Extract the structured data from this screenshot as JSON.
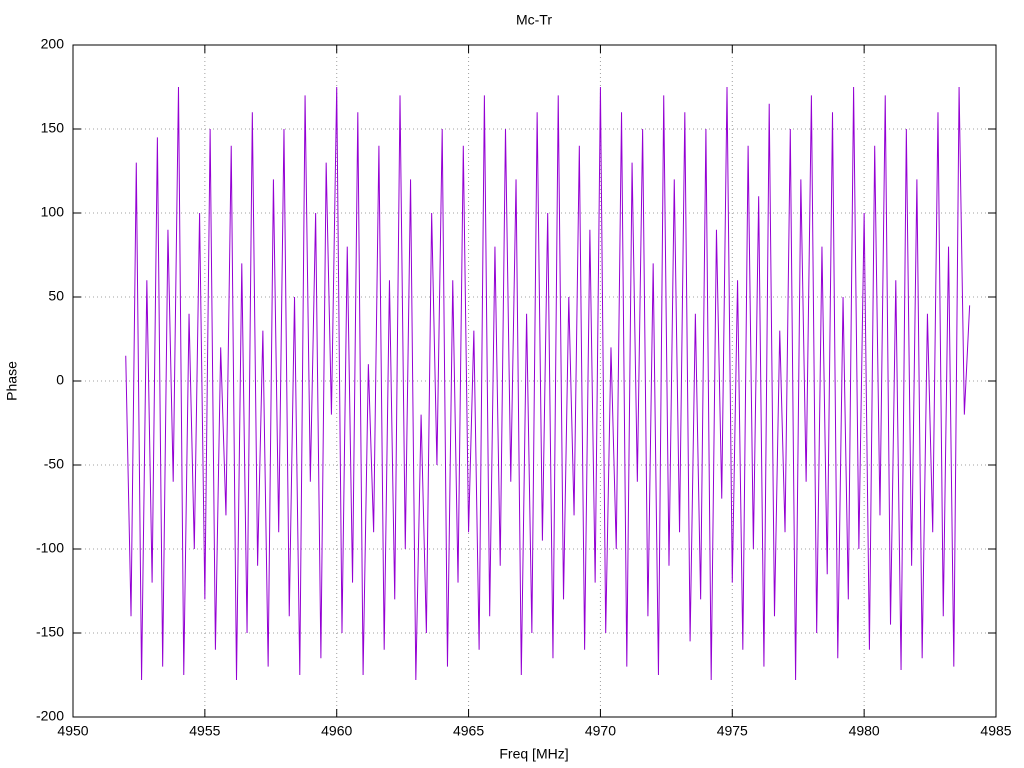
{
  "chart_data": {
    "type": "line",
    "title": "Mc-Tr",
    "x_label": "Freq [MHz]",
    "y_label": "Phase",
    "color": "#9400d3",
    "grid": true,
    "xlim": [
      4950,
      4985
    ],
    "xticks": [
      4950,
      4955,
      4960,
      4965,
      4970,
      4975,
      4980,
      4985
    ],
    "ylim": [
      -200,
      200
    ],
    "yticks": [
      -200,
      -150,
      -100,
      -50,
      0,
      50,
      100,
      150,
      200
    ],
    "x": [
      4952,
      4952.2,
      4952.4,
      4952.6,
      4952.8,
      4953,
      4953.2,
      4953.4,
      4953.6,
      4953.8,
      4954,
      4954.2,
      4954.4,
      4954.6,
      4954.8,
      4955,
      4955.2,
      4955.4,
      4955.6,
      4955.8,
      4956,
      4956.2,
      4956.4,
      4956.6,
      4956.8,
      4957,
      4957.2,
      4957.4,
      4957.6,
      4957.8,
      4958,
      4958.2,
      4958.4,
      4958.6,
      4958.8,
      4959,
      4959.2,
      4959.4,
      4959.6,
      4959.8,
      4960,
      4960.2,
      4960.4,
      4960.6,
      4960.8,
      4961,
      4961.2,
      4961.4,
      4961.6,
      4961.8,
      4962,
      4962.2,
      4962.4,
      4962.6,
      4962.8,
      4963,
      4963.2,
      4963.4,
      4963.6,
      4963.8,
      4964,
      4964.2,
      4964.4,
      4964.6,
      4964.8,
      4965,
      4965.2,
      4965.4,
      4965.6,
      4965.8,
      4966,
      4966.2,
      4966.4,
      4966.6,
      4966.8,
      4967,
      4967.2,
      4967.4,
      4967.6,
      4967.8,
      4968,
      4968.2,
      4968.4,
      4968.6,
      4968.8,
      4969,
      4969.2,
      4969.4,
      4969.6,
      4969.8,
      4970,
      4970.2,
      4970.4,
      4970.6,
      4970.8,
      4971,
      4971.2,
      4971.4,
      4971.6,
      4971.8,
      4972,
      4972.2,
      4972.4,
      4972.6,
      4972.8,
      4973,
      4973.2,
      4973.4,
      4973.6,
      4973.8,
      4974,
      4974.2,
      4974.4,
      4974.6,
      4974.8,
      4975,
      4975.2,
      4975.4,
      4975.6,
      4975.8,
      4976,
      4976.2,
      4976.4,
      4976.6,
      4976.8,
      4977,
      4977.2,
      4977.4,
      4977.6,
      4977.8,
      4978,
      4978.2,
      4978.4,
      4978.6,
      4978.8,
      4979,
      4979.2,
      4979.4,
      4979.6,
      4979.8,
      4980,
      4980.2,
      4980.4,
      4980.6,
      4980.8,
      4981,
      4981.2,
      4981.4,
      4981.6,
      4981.8,
      4982,
      4982.2,
      4982.4,
      4982.6,
      4982.8,
      4983,
      4983.2,
      4983.4,
      4983.6,
      4983.8,
      4984
    ],
    "values": [
      15,
      -140,
      130,
      -178,
      60,
      -120,
      145,
      -170,
      90,
      -60,
      175,
      -175,
      40,
      -100,
      100,
      -130,
      150,
      -160,
      20,
      -80,
      140,
      -178,
      70,
      -150,
      160,
      -110,
      30,
      -170,
      120,
      -90,
      150,
      -140,
      50,
      -175,
      170,
      -60,
      100,
      -165,
      130,
      -20,
      175,
      -150,
      80,
      -120,
      160,
      -175,
      10,
      -90,
      140,
      -160,
      60,
      -130,
      170,
      -100,
      120,
      -178,
      -20,
      -150,
      100,
      -50,
      150,
      -170,
      60,
      -120,
      140,
      -90,
      30,
      -160,
      170,
      -140,
      80,
      -110,
      150,
      -60,
      120,
      -175,
      40,
      -150,
      160,
      -95,
      100,
      -165,
      170,
      -130,
      50,
      -80,
      140,
      -160,
      90,
      -120,
      175,
      -150,
      20,
      -100,
      160,
      -170,
      130,
      -60,
      150,
      -140,
      70,
      -175,
      170,
      -110,
      120,
      -90,
      160,
      -155,
      40,
      -130,
      150,
      -178,
      90,
      -70,
      175,
      -120,
      60,
      -160,
      140,
      -100,
      110,
      -170,
      165,
      -140,
      30,
      -90,
      150,
      -178,
      120,
      -60,
      170,
      -150,
      80,
      -115,
      160,
      -165,
      50,
      -130,
      175,
      -100,
      100,
      -160,
      140,
      -80,
      170,
      -145,
      60,
      -172,
      150,
      -110,
      120,
      -165,
      40,
      -90,
      160,
      -140,
      80,
      -170,
      175,
      -20,
      45
    ]
  }
}
